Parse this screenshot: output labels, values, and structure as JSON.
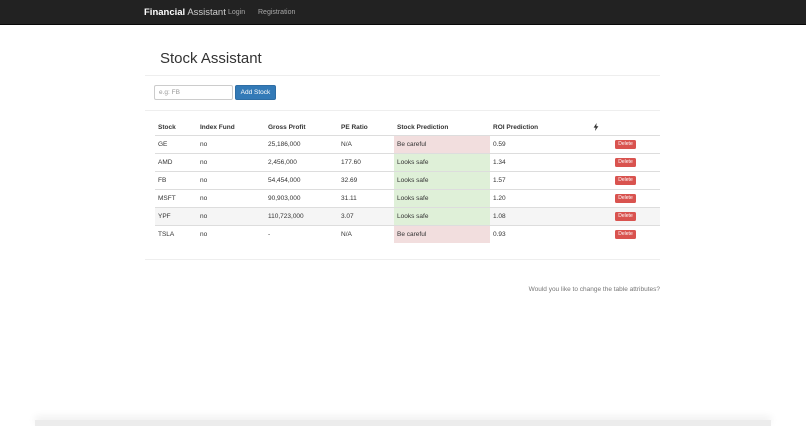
{
  "navbar": {
    "brand_bold": "Financial",
    "brand_rest": "Assistant",
    "links": [
      "Login",
      "Registration"
    ]
  },
  "page": {
    "title": "Stock Assistant"
  },
  "form": {
    "placeholder": "e.g: FB",
    "value": "",
    "add_label": "Add Stock"
  },
  "table": {
    "headers": [
      "Stock",
      "Index Fund",
      "Gross Profit",
      "PE Ratio",
      "Stock Prediction",
      "ROI Prediction"
    ],
    "action_header_icon": "bolt-icon",
    "delete_label": "Delete",
    "rows": [
      {
        "stock": "GE",
        "index_fund": "no",
        "gross_profit": "25,186,000",
        "pe_ratio": "N/A",
        "prediction": "Be careful",
        "roi": "0.59"
      },
      {
        "stock": "AMD",
        "index_fund": "no",
        "gross_profit": "2,456,000",
        "pe_ratio": "177.60",
        "prediction": "Looks safe",
        "roi": "1.34"
      },
      {
        "stock": "FB",
        "index_fund": "no",
        "gross_profit": "54,454,000",
        "pe_ratio": "32.69",
        "prediction": "Looks safe",
        "roi": "1.57"
      },
      {
        "stock": "MSFT",
        "index_fund": "no",
        "gross_profit": "90,903,000",
        "pe_ratio": "31.11",
        "prediction": "Looks safe",
        "roi": "1.20"
      },
      {
        "stock": "YPF",
        "index_fund": "no",
        "gross_profit": "110,723,000",
        "pe_ratio": "3.07",
        "prediction": "Looks safe",
        "roi": "1.08"
      },
      {
        "stock": "TSLA",
        "index_fund": "no",
        "gross_profit": "-",
        "pe_ratio": "N/A",
        "prediction": "Be careful",
        "roi": "0.93"
      }
    ]
  },
  "footer": {
    "link_text": "Would you like to change the table attributes?"
  },
  "colors": {
    "navbar_bg": "#222222",
    "primary": "#337ab7",
    "danger": "#d9534f",
    "careful_bg": "#f2dede",
    "safe_bg": "#dff0d8"
  }
}
